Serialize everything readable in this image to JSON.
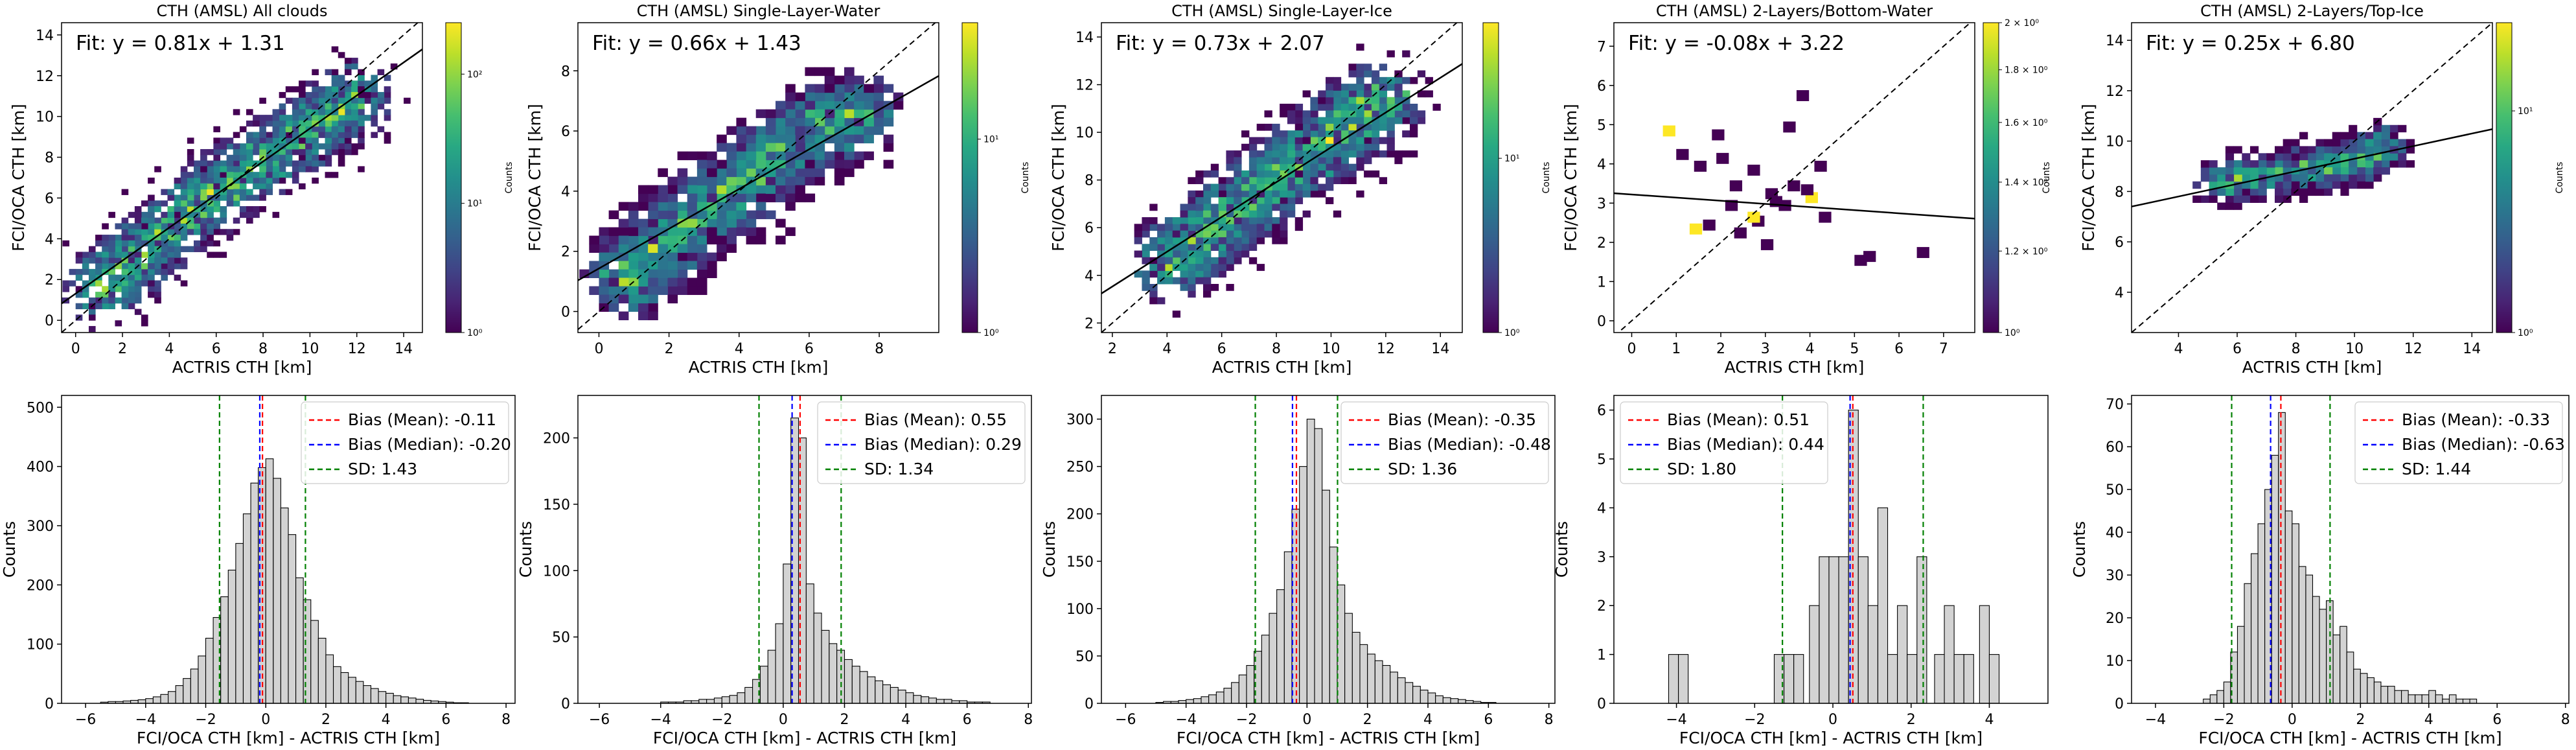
{
  "chart_data": [
    {
      "type": "heatmap",
      "title": "CTH (AMSL) All clouds",
      "xlabel": "ACTRIS CTH [km]",
      "ylabel": "FCI/OCA CTH [km]",
      "xlim": [
        -0.6,
        14.8
      ],
      "ylim": [
        -0.6,
        14.6
      ],
      "xticks": [
        0,
        2,
        4,
        6,
        8,
        10,
        12,
        14
      ],
      "yticks": [
        0,
        2,
        4,
        6,
        8,
        10,
        12,
        14
      ],
      "fit": {
        "slope": 0.81,
        "intercept": 1.31,
        "label": "Fit: y = 0.81x + 1.31"
      },
      "colorbar": {
        "label": "Counts",
        "scale": "log",
        "ticks": [
          "10⁰",
          "10¹",
          "10²"
        ],
        "range": [
          1,
          250
        ]
      },
      "density_axis": [
        [
          1,
          1.5
        ],
        [
          5,
          5.5
        ],
        [
          9.5,
          9
        ],
        [
          12,
          11
        ]
      ],
      "spread": 1.5
    },
    {
      "type": "heatmap",
      "title": "CTH (AMSL) Single-Layer-Water",
      "xlabel": "ACTRIS CTH [km]",
      "ylabel": "FCI/OCA CTH [km]",
      "xlim": [
        -0.6,
        9.7
      ],
      "ylim": [
        -0.7,
        9.6
      ],
      "xticks": [
        0,
        2,
        4,
        6,
        8
      ],
      "yticks": [
        0,
        2,
        4,
        6,
        8
      ],
      "fit": {
        "slope": 0.66,
        "intercept": 1.43,
        "label": "Fit: y = 0.66x + 1.43"
      },
      "colorbar": {
        "label": "Counts",
        "scale": "log",
        "ticks": [
          "10⁰",
          "10¹"
        ],
        "range": [
          1,
          40
        ]
      },
      "density_axis": [
        [
          0.8,
          1.0
        ],
        [
          2.0,
          2.5
        ],
        [
          4.0,
          4.2
        ],
        [
          6.0,
          6.0
        ],
        [
          7.5,
          6.6
        ]
      ],
      "spread": 1.1
    },
    {
      "type": "heatmap",
      "title": "CTH (AMSL) Single-Layer-Ice",
      "xlabel": "ACTRIS CTH [km]",
      "ylabel": "FCI/OCA CTH [km]",
      "xlim": [
        1.6,
        14.8
      ],
      "ylim": [
        1.6,
        14.6
      ],
      "xticks": [
        2,
        4,
        6,
        8,
        10,
        12,
        14
      ],
      "yticks": [
        2,
        4,
        6,
        8,
        10,
        12,
        14
      ],
      "fit": {
        "slope": 0.73,
        "intercept": 2.07,
        "label": "Fit: y = 0.73x + 2.07"
      },
      "colorbar": {
        "label": "Counts",
        "scale": "log",
        "ticks": [
          "10⁰",
          "10¹"
        ],
        "range": [
          1,
          60
        ]
      },
      "density_axis": [
        [
          4,
          4.5
        ],
        [
          7,
          7.2
        ],
        [
          10,
          9.8
        ],
        [
          12,
          11.5
        ]
      ],
      "spread": 1.4
    },
    {
      "type": "heatmap",
      "title": "CTH (AMSL) 2-Layers/Bottom-Water",
      "xlabel": "ACTRIS CTH [km]",
      "ylabel": "FCI/OCA CTH [km]",
      "xlim": [
        -0.4,
        7.7
      ],
      "ylim": [
        -0.3,
        7.6
      ],
      "xticks": [
        0,
        1,
        2,
        3,
        4,
        5,
        6,
        7
      ],
      "yticks": [
        0,
        1,
        2,
        3,
        4,
        5,
        6,
        7
      ],
      "fit": {
        "slope": -0.08,
        "intercept": 3.22,
        "label": "Fit: y = -0.08x + 3.22"
      },
      "colorbar": {
        "label": "Counts",
        "scale": "log",
        "ticks": [
          "10⁰",
          "1.2 × 10⁰",
          "1.4 × 10⁰",
          "1.6 × 10⁰",
          "1.8 × 10⁰",
          "2 × 10⁰"
        ],
        "range": [
          1,
          2
        ]
      },
      "cells": [
        [
          0.7,
          4.7,
          2
        ],
        [
          1.0,
          4.1,
          1
        ],
        [
          1.4,
          3.8,
          1
        ],
        [
          1.9,
          4.0,
          1
        ],
        [
          2.2,
          3.3,
          1
        ],
        [
          2.6,
          3.7,
          1
        ],
        [
          3.0,
          3.1,
          1
        ],
        [
          3.5,
          3.3,
          1
        ],
        [
          3.9,
          3.0,
          2
        ],
        [
          3.4,
          4.8,
          1
        ],
        [
          3.7,
          5.6,
          1
        ],
        [
          2.1,
          2.8,
          1
        ],
        [
          2.7,
          2.4,
          1
        ],
        [
          1.3,
          2.2,
          2
        ],
        [
          1.6,
          2.3,
          1
        ],
        [
          2.3,
          2.1,
          1
        ],
        [
          3.1,
          2.9,
          1
        ],
        [
          2.9,
          1.8,
          1
        ],
        [
          5.0,
          1.4,
          1
        ],
        [
          5.2,
          1.5,
          1
        ],
        [
          6.4,
          1.6,
          1
        ],
        [
          4.2,
          2.5,
          1
        ],
        [
          2.6,
          2.5,
          2
        ],
        [
          3.3,
          2.8,
          1
        ],
        [
          1.8,
          4.6,
          1
        ],
        [
          3.8,
          3.2,
          1
        ],
        [
          4.1,
          3.8,
          1
        ]
      ]
    },
    {
      "type": "heatmap",
      "title": "CTH (AMSL) 2-Layers/Top-Ice",
      "xlabel": "ACTRIS CTH [km]",
      "ylabel": "FCI/OCA CTH [km]",
      "xlim": [
        2.4,
        14.7
      ],
      "ylim": [
        2.4,
        14.7
      ],
      "xticks": [
        4,
        6,
        8,
        10,
        12,
        14
      ],
      "yticks": [
        4,
        6,
        8,
        10,
        12,
        14
      ],
      "fit": {
        "slope": 0.25,
        "intercept": 6.8,
        "label": "Fit: y = 0.25x + 6.80"
      },
      "colorbar": {
        "label": "Counts",
        "scale": "log",
        "ticks": [
          "10⁰",
          "10¹"
        ],
        "range": [
          1,
          25
        ]
      },
      "density_axis": [
        [
          5.5,
          8.4
        ],
        [
          8,
          8.8
        ],
        [
          10,
          9.2
        ],
        [
          11,
          9.8
        ]
      ],
      "spread": 0.7
    },
    {
      "type": "bar",
      "subtype": "histogram",
      "xlabel": "FCI/OCA CTH [km] - ACTRIS CTH [km]",
      "ylabel": "Counts",
      "xlim": [
        -6.8,
        8.3
      ],
      "ylim": [
        0,
        520
      ],
      "xticks": [
        -6,
        -4,
        -2,
        0,
        2,
        4,
        6,
        8
      ],
      "yticks": [
        0,
        100,
        200,
        300,
        400,
        500
      ],
      "bin_start": -5.5,
      "bin_width": 0.25,
      "values": [
        2,
        3,
        3,
        4,
        5,
        6,
        8,
        11,
        15,
        20,
        30,
        42,
        58,
        80,
        110,
        145,
        180,
        225,
        270,
        320,
        372,
        398,
        413,
        380,
        330,
        285,
        212,
        175,
        140,
        110,
        82,
        62,
        52,
        44,
        37,
        30,
        25,
        20,
        17,
        13,
        11,
        9,
        7,
        5,
        4,
        3,
        2,
        1,
        1
      ],
      "legend": [
        {
          "label": "Bias (Mean): -0.11",
          "color": "#ff0000"
        },
        {
          "label": "Bias (Median): -0.20",
          "color": "#0000ff"
        },
        {
          "label": "SD: 1.43",
          "color": "#008000"
        }
      ],
      "legend_position": "upper right",
      "vlines": {
        "mean": -0.11,
        "median": -0.2,
        "sd_low": -1.54,
        "sd_high": 1.32
      }
    },
    {
      "type": "bar",
      "subtype": "histogram",
      "xlabel": "FCI/OCA CTH [km] - ACTRIS CTH [km]",
      "ylabel": "Counts",
      "xlim": [
        -6.7,
        8.1
      ],
      "ylim": [
        0,
        232
      ],
      "xticks": [
        -6,
        -4,
        -2,
        0,
        2,
        4,
        6,
        8
      ],
      "yticks": [
        0,
        50,
        100,
        150,
        200
      ],
      "bin_start": -4.0,
      "bin_width": 0.25,
      "values": [
        1,
        1,
        1,
        2,
        2,
        3,
        3,
        4,
        5,
        6,
        8,
        12,
        18,
        28,
        40,
        60,
        105,
        215,
        200,
        90,
        68,
        55,
        45,
        40,
        33,
        28,
        24,
        20,
        17,
        14,
        12,
        10,
        8,
        6,
        5,
        4,
        3,
        3,
        2,
        2,
        1,
        1,
        1
      ],
      "legend": [
        {
          "label": "Bias (Mean): 0.55",
          "color": "#ff0000"
        },
        {
          "label": "Bias (Median): 0.29",
          "color": "#0000ff"
        },
        {
          "label": "SD: 1.34",
          "color": "#008000"
        }
      ],
      "legend_position": "upper right",
      "vlines": {
        "mean": 0.55,
        "median": 0.29,
        "sd_low": -0.79,
        "sd_high": 1.89
      }
    },
    {
      "type": "bar",
      "subtype": "histogram",
      "xlabel": "FCI/OCA CTH [km] - ACTRIS CTH [km]",
      "ylabel": "Counts",
      "xlim": [
        -6.8,
        8.2
      ],
      "ylim": [
        0,
        325
      ],
      "xticks": [
        -6,
        -4,
        -2,
        0,
        2,
        4,
        6,
        8
      ],
      "yticks": [
        0,
        50,
        100,
        150,
        200,
        250,
        300
      ],
      "bin_start": -5.0,
      "bin_width": 0.25,
      "values": [
        1,
        2,
        2,
        3,
        4,
        5,
        7,
        9,
        12,
        16,
        22,
        30,
        40,
        55,
        72,
        95,
        120,
        160,
        205,
        250,
        300,
        290,
        225,
        165,
        125,
        95,
        75,
        62,
        52,
        45,
        40,
        33,
        27,
        22,
        18,
        14,
        11,
        8,
        6,
        5,
        4,
        3,
        2,
        1,
        1
      ],
      "legend": [
        {
          "label": "Bias (Mean): -0.35",
          "color": "#ff0000"
        },
        {
          "label": "Bias (Median): -0.48",
          "color": "#0000ff"
        },
        {
          "label": "SD: 1.36",
          "color": "#008000"
        }
      ],
      "legend_position": "upper right",
      "vlines": {
        "mean": -0.35,
        "median": -0.48,
        "sd_low": -1.71,
        "sd_high": 1.01
      }
    },
    {
      "type": "bar",
      "subtype": "histogram",
      "xlabel": "FCI/OCA CTH [km] - ACTRIS CTH [km]",
      "ylabel": "Counts",
      "xlim": [
        -5.6,
        5.5
      ],
      "ylim": [
        0,
        6.3
      ],
      "xticks": [
        -4,
        -2,
        0,
        2,
        4
      ],
      "yticks": [
        0,
        1,
        2,
        3,
        4,
        5,
        6
      ],
      "bins": [
        [
          -4.2,
          1
        ],
        [
          -3.95,
          1
        ],
        [
          -1.5,
          1
        ],
        [
          -1.25,
          1
        ],
        [
          -1.0,
          1
        ],
        [
          -0.6,
          2
        ],
        [
          -0.35,
          3
        ],
        [
          -0.1,
          3
        ],
        [
          0.15,
          3
        ],
        [
          0.4,
          6
        ],
        [
          0.65,
          3
        ],
        [
          0.9,
          2
        ],
        [
          1.15,
          4
        ],
        [
          1.4,
          1
        ],
        [
          1.65,
          2
        ],
        [
          1.9,
          1
        ],
        [
          2.15,
          3
        ],
        [
          2.6,
          1
        ],
        [
          2.85,
          2
        ],
        [
          3.1,
          1
        ],
        [
          3.35,
          1
        ],
        [
          3.75,
          2
        ],
        [
          4.0,
          1
        ]
      ],
      "bin_width": 0.25,
      "legend": [
        {
          "label": "Bias (Mean): 0.51",
          "color": "#ff0000"
        },
        {
          "label": "Bias (Median): 0.44",
          "color": "#0000ff"
        },
        {
          "label": "SD: 1.80",
          "color": "#008000"
        }
      ],
      "legend_position": "upper left",
      "vlines": {
        "mean": 0.51,
        "median": 0.44,
        "sd_low": -1.29,
        "sd_high": 2.31
      }
    },
    {
      "type": "bar",
      "subtype": "histogram",
      "xlabel": "FCI/OCA CTH [km] - ACTRIS CTH [km]",
      "ylabel": "Counts",
      "xlim": [
        -4.7,
        8.1
      ],
      "ylim": [
        0,
        72
      ],
      "xticks": [
        -4,
        -2,
        0,
        2,
        4,
        6,
        8
      ],
      "yticks": [
        0,
        10,
        20,
        30,
        40,
        50,
        60,
        70
      ],
      "bin_start": -2.6,
      "bin_width": 0.2,
      "values": [
        1,
        2,
        3,
        5,
        12,
        18,
        28,
        35,
        42,
        50,
        58,
        68,
        45,
        42,
        32,
        30,
        25,
        22,
        24,
        16,
        18,
        12,
        8,
        7,
        6,
        5,
        4,
        4,
        3,
        3,
        2,
        2,
        2,
        3,
        2,
        1,
        2,
        1,
        1,
        1
      ],
      "legend": [
        {
          "label": "Bias (Mean): -0.33",
          "color": "#ff0000"
        },
        {
          "label": "Bias (Median): -0.63",
          "color": "#0000ff"
        },
        {
          "label": "SD: 1.44",
          "color": "#008000"
        }
      ],
      "legend_position": "upper right",
      "vlines": {
        "mean": -0.33,
        "median": -0.63,
        "sd_low": -1.77,
        "sd_high": 1.11
      }
    }
  ]
}
